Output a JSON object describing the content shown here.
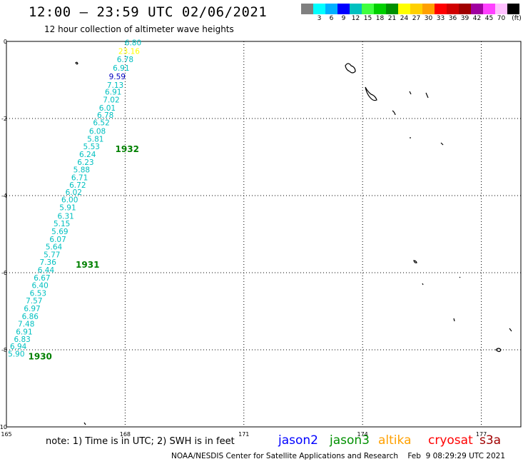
{
  "header": {
    "title": "12:00 – 23:59 UTC 02/06/2021",
    "subtitle": "12 hour collection of altimeter wave heights"
  },
  "legend": {
    "unit": "(ft)",
    "bins": [
      {
        "color": "#808080",
        "label": ""
      },
      {
        "color": "#00ffff",
        "label": "3"
      },
      {
        "color": "#00b0ff",
        "label": "6"
      },
      {
        "color": "#0000ff",
        "label": "9"
      },
      {
        "color": "#00c0c0",
        "label": "12"
      },
      {
        "color": "#40ff40",
        "label": "15"
      },
      {
        "color": "#00d000",
        "label": "18"
      },
      {
        "color": "#009000",
        "label": "21"
      },
      {
        "color": "#ffff00",
        "label": "24"
      },
      {
        "color": "#ffd000",
        "label": "27"
      },
      {
        "color": "#ffa000",
        "label": "30"
      },
      {
        "color": "#ff0000",
        "label": "33"
      },
      {
        "color": "#d00000",
        "label": "36"
      },
      {
        "color": "#a00000",
        "label": "39"
      },
      {
        "color": "#a000a0",
        "label": "42"
      },
      {
        "color": "#ff40ff",
        "label": "45"
      },
      {
        "color": "#ffc0ff",
        "label": "70"
      },
      {
        "color": "#000000",
        "label": ""
      }
    ]
  },
  "map": {
    "lon_range": [
      165,
      178
    ],
    "lat_range": [
      -10,
      0
    ],
    "x_ticks": [
      {
        "value": 165,
        "label": "165"
      },
      {
        "value": 168,
        "label": "168"
      },
      {
        "value": 171,
        "label": "171"
      },
      {
        "value": 174,
        "label": "174"
      },
      {
        "value": 177,
        "label": "177"
      }
    ],
    "y_ticks": [
      {
        "value": 0,
        "label": "0"
      },
      {
        "value": -2,
        "label": "-2"
      },
      {
        "value": -4,
        "label": "-4"
      },
      {
        "value": -6,
        "label": "-6"
      },
      {
        "value": -8,
        "label": "-8"
      },
      {
        "value": -10,
        "label": "-10"
      }
    ],
    "grid": true,
    "track_color": "#00c0c0",
    "wave_heights": [
      {
        "lon": 168.2,
        "lat": -0.1,
        "value": "6.80",
        "color": "#00c0c0"
      },
      {
        "lon": 168.1,
        "lat": -0.32,
        "value": "23.16",
        "color": "#ffff00"
      },
      {
        "lon": 168.0,
        "lat": -0.54,
        "value": "6.78",
        "color": "#00c0c0"
      },
      {
        "lon": 167.9,
        "lat": -0.76,
        "value": "6.91",
        "color": "#00c0c0"
      },
      {
        "lon": 167.8,
        "lat": -0.98,
        "value": "9.59",
        "color": "#0000c0"
      },
      {
        "lon": 167.75,
        "lat": -1.2,
        "value": "7.13",
        "color": "#00c0c0"
      },
      {
        "lon": 167.7,
        "lat": -1.38,
        "value": "6.91",
        "color": "#00c0c0"
      },
      {
        "lon": 167.65,
        "lat": -1.58,
        "value": "7.02",
        "color": "#00c0c0"
      },
      {
        "lon": 167.55,
        "lat": -1.8,
        "value": "6.01",
        "color": "#00c0c0"
      },
      {
        "lon": 167.5,
        "lat": -1.98,
        "value": "6.78",
        "color": "#00c0c0"
      },
      {
        "lon": 167.4,
        "lat": -2.18,
        "value": "6.52",
        "color": "#00c0c0"
      },
      {
        "lon": 167.3,
        "lat": -2.4,
        "value": "6.08",
        "color": "#00c0c0"
      },
      {
        "lon": 167.25,
        "lat": -2.6,
        "value": "5.81",
        "color": "#00c0c0"
      },
      {
        "lon": 167.15,
        "lat": -2.8,
        "value": "5.53",
        "color": "#00c0c0"
      },
      {
        "lon": 167.05,
        "lat": -3.0,
        "value": "6.24",
        "color": "#00c0c0"
      },
      {
        "lon": 167.0,
        "lat": -3.2,
        "value": "6.23",
        "color": "#00c0c0"
      },
      {
        "lon": 166.9,
        "lat": -3.4,
        "value": "5.88",
        "color": "#00c0c0"
      },
      {
        "lon": 166.85,
        "lat": -3.6,
        "value": "6.71",
        "color": "#00c0c0"
      },
      {
        "lon": 166.8,
        "lat": -3.8,
        "value": "6.72",
        "color": "#00c0c0"
      },
      {
        "lon": 166.7,
        "lat": -3.98,
        "value": "6.02",
        "color": "#00c0c0"
      },
      {
        "lon": 166.6,
        "lat": -4.18,
        "value": "6.00",
        "color": "#00c0c0"
      },
      {
        "lon": 166.55,
        "lat": -4.38,
        "value": "5.91",
        "color": "#00c0c0"
      },
      {
        "lon": 166.5,
        "lat": -4.6,
        "value": "6.31",
        "color": "#00c0c0"
      },
      {
        "lon": 166.4,
        "lat": -4.8,
        "value": "5.15",
        "color": "#00c0c0"
      },
      {
        "lon": 166.35,
        "lat": -5.0,
        "value": "5.69",
        "color": "#00c0c0"
      },
      {
        "lon": 166.3,
        "lat": -5.2,
        "value": "6.07",
        "color": "#00c0c0"
      },
      {
        "lon": 166.2,
        "lat": -5.4,
        "value": "5.64",
        "color": "#00c0c0"
      },
      {
        "lon": 166.15,
        "lat": -5.6,
        "value": "5.77",
        "color": "#00c0c0"
      },
      {
        "lon": 166.05,
        "lat": -5.8,
        "value": "7.36",
        "color": "#00c0c0"
      },
      {
        "lon": 166.0,
        "lat": -6.0,
        "value": "6.44",
        "color": "#00c0c0"
      },
      {
        "lon": 165.9,
        "lat": -6.2,
        "value": "6.67",
        "color": "#00c0c0"
      },
      {
        "lon": 165.85,
        "lat": -6.4,
        "value": "6.40",
        "color": "#00c0c0"
      },
      {
        "lon": 165.8,
        "lat": -6.6,
        "value": "6.53",
        "color": "#00c0c0"
      },
      {
        "lon": 165.7,
        "lat": -6.8,
        "value": "7.57",
        "color": "#00c0c0"
      },
      {
        "lon": 165.65,
        "lat": -7.0,
        "value": "6.97",
        "color": "#00c0c0"
      },
      {
        "lon": 165.6,
        "lat": -7.2,
        "value": "6.86",
        "color": "#00c0c0"
      },
      {
        "lon": 165.5,
        "lat": -7.4,
        "value": "7.48",
        "color": "#00c0c0"
      },
      {
        "lon": 165.45,
        "lat": -7.6,
        "value": "6.91",
        "color": "#00c0c0"
      },
      {
        "lon": 165.4,
        "lat": -7.8,
        "value": "6.83",
        "color": "#00c0c0"
      },
      {
        "lon": 165.3,
        "lat": -7.98,
        "value": "6.94",
        "color": "#00c0c0"
      },
      {
        "lon": 165.25,
        "lat": -8.18,
        "value": "5.90",
        "color": "#00c0c0"
      }
    ],
    "time_labels": [
      {
        "lon": 167.75,
        "lat": -2.8,
        "text": "1932",
        "color": "#008000"
      },
      {
        "lon": 166.75,
        "lat": -5.8,
        "text": "1931",
        "color": "#008000"
      },
      {
        "lon": 165.55,
        "lat": -8.18,
        "text": "1930",
        "color": "#008000"
      }
    ]
  },
  "footer": {
    "note": "note: 1) Time is in UTC; 2) SWH is in feet",
    "satellites": [
      {
        "name": "jason2",
        "color": "#0000ff"
      },
      {
        "name": "jason3",
        "color": "#009000"
      },
      {
        "name": "altika",
        "color": "#ffa000"
      },
      {
        "name": "cryosat",
        "color": "#ff0000"
      },
      {
        "name": "s3a",
        "color": "#a00000"
      }
    ],
    "credit": "NOAA/NESDIS Center for Satellite Applications and Research    Feb  9 08:29:29 UTC 2021"
  }
}
